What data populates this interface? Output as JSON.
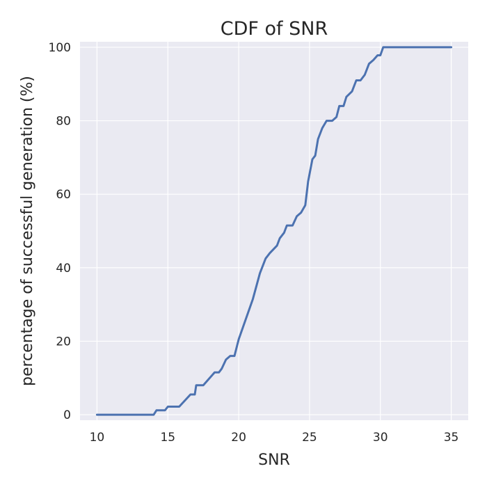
{
  "chart_data": {
    "type": "line",
    "title": "CDF of SNR",
    "xlabel": "SNR",
    "ylabel": "percentage of successful generation (%)",
    "xlim": [
      8.8,
      36.2
    ],
    "ylim": [
      -1.5,
      101.5
    ],
    "xticks": [
      10,
      15,
      20,
      25,
      30,
      35
    ],
    "yticks": [
      0,
      20,
      40,
      60,
      80,
      100
    ],
    "grid": true,
    "background": "#eaeaf2",
    "series": [
      {
        "color": "#4c72b0",
        "x": [
          10,
          14.0,
          14.2,
          14.8,
          15.0,
          15.8,
          16.6,
          16.9,
          17.0,
          17.5,
          18.3,
          18.6,
          18.8,
          19.1,
          19.4,
          19.7,
          20.0,
          21.0,
          21.5,
          21.9,
          22.2,
          22.7,
          22.9,
          23.2,
          23.4,
          23.8,
          24.1,
          24.4,
          24.7,
          24.9,
          25.2,
          25.4,
          25.6,
          25.9,
          26.2,
          26.6,
          26.9,
          27.1,
          27.4,
          27.6,
          28.0,
          28.3,
          28.6,
          28.9,
          29.2,
          29.5,
          29.8,
          30.0,
          30.2,
          35.0
        ],
        "y": [
          0,
          0,
          1.2,
          1.2,
          2.2,
          2.2,
          5.5,
          5.5,
          8.0,
          8.0,
          11.5,
          11.5,
          12.5,
          15.0,
          16.0,
          16.0,
          20.5,
          31.5,
          38.5,
          42.5,
          44.0,
          46.0,
          48.0,
          49.5,
          51.5,
          51.5,
          54.0,
          55.0,
          57.0,
          63.5,
          69.5,
          70.5,
          75.0,
          78.0,
          80.0,
          80.0,
          81.0,
          84.0,
          84.0,
          86.5,
          88.0,
          91.0,
          91.0,
          92.5,
          95.5,
          96.5,
          97.8,
          97.8,
          100,
          100
        ]
      }
    ]
  }
}
